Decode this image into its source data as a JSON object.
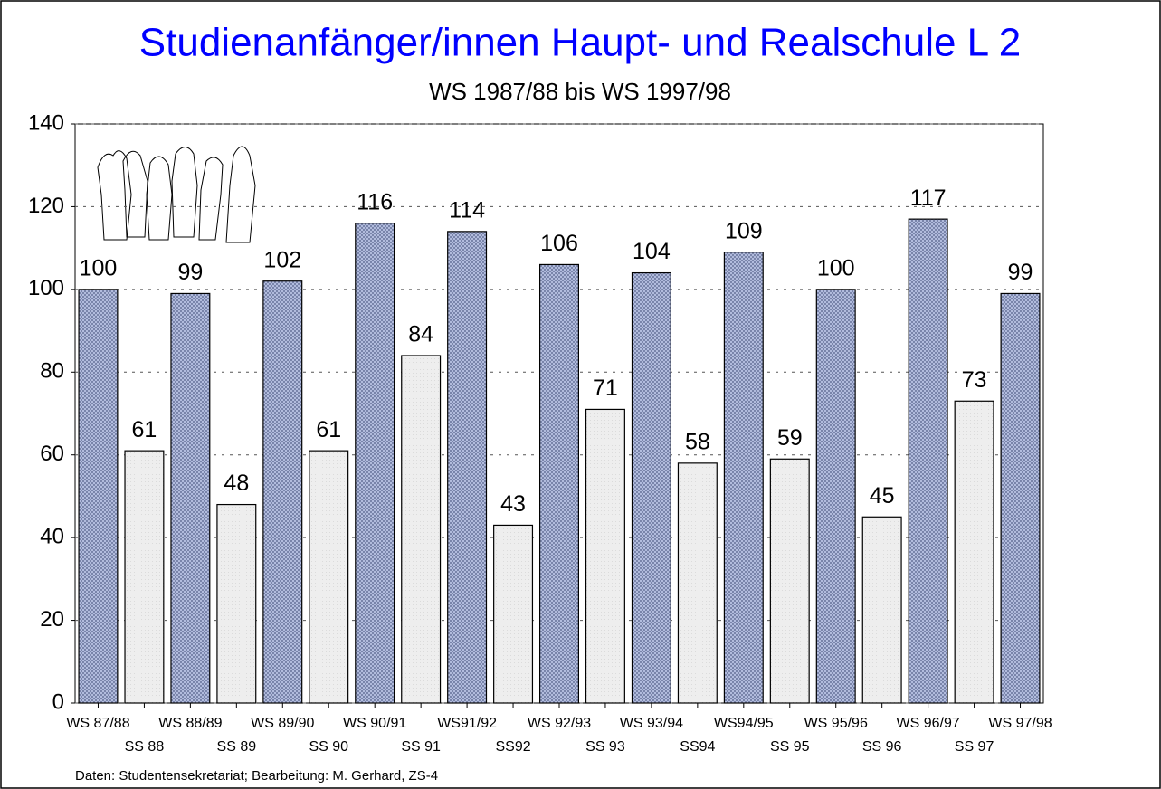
{
  "chart_data": {
    "type": "bar",
    "title": "Studienanfänger/innen Haupt- und Realschule L 2",
    "subtitle": "WS 1987/88 bis WS 1997/98",
    "source": "Daten: Studentensekretariat;  Bearbeitung: M. Gerhard, ZS-4",
    "categories": [
      "WS 87/88",
      "SS 88",
      "WS 88/89",
      "SS 89",
      "WS 89/90",
      "SS 90",
      "WS 90/91",
      "SS 91",
      "WS91/92",
      "SS92",
      "WS 92/93",
      "SS 93",
      "WS 93/94",
      "SS94",
      "WS94/95",
      "SS 95",
      "WS 95/96",
      "SS 96",
      "WS 96/97",
      "SS 97",
      "WS 97/98"
    ],
    "values": [
      100,
      61,
      99,
      48,
      102,
      61,
      116,
      84,
      114,
      43,
      106,
      71,
      104,
      58,
      109,
      59,
      100,
      45,
      117,
      73,
      99
    ],
    "colors": [
      "#b9c3e4",
      "#eeeeee",
      "#b9c3e4",
      "#eeeeee",
      "#b9c3e4",
      "#eeeeee",
      "#b9c3e4",
      "#eeeeee",
      "#b9c3e4",
      "#eeeeee",
      "#b9c3e4",
      "#eeeeee",
      "#b9c3e4",
      "#eeeeee",
      "#b9c3e4",
      "#eeeeee",
      "#b9c3e4",
      "#eeeeee",
      "#b9c3e4",
      "#eeeeee",
      "#b9c3e4"
    ],
    "ylim": [
      0,
      140
    ],
    "yticks": [
      0,
      20,
      40,
      60,
      80,
      100,
      120,
      140
    ],
    "grid": true
  }
}
